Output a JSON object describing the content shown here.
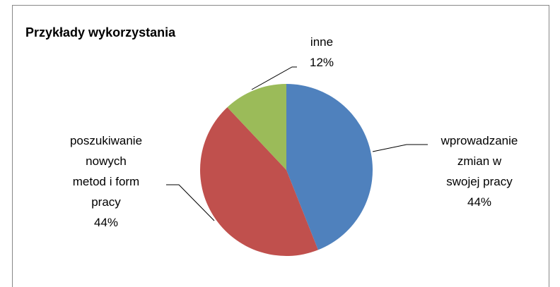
{
  "chart_data": {
    "type": "pie",
    "title": "Przykłady wykorzystania",
    "categories": [
      "wprowadzanie\nzmian w\nswojej pracy",
      "poszukiwanie\nnowych\nmetod i form\npracy",
      "inne"
    ],
    "values": [
      44,
      44,
      12
    ],
    "value_labels": [
      "44%",
      "44%",
      "12%"
    ],
    "colors": [
      "#4f81bd",
      "#c0504d",
      "#9bbb59"
    ]
  }
}
